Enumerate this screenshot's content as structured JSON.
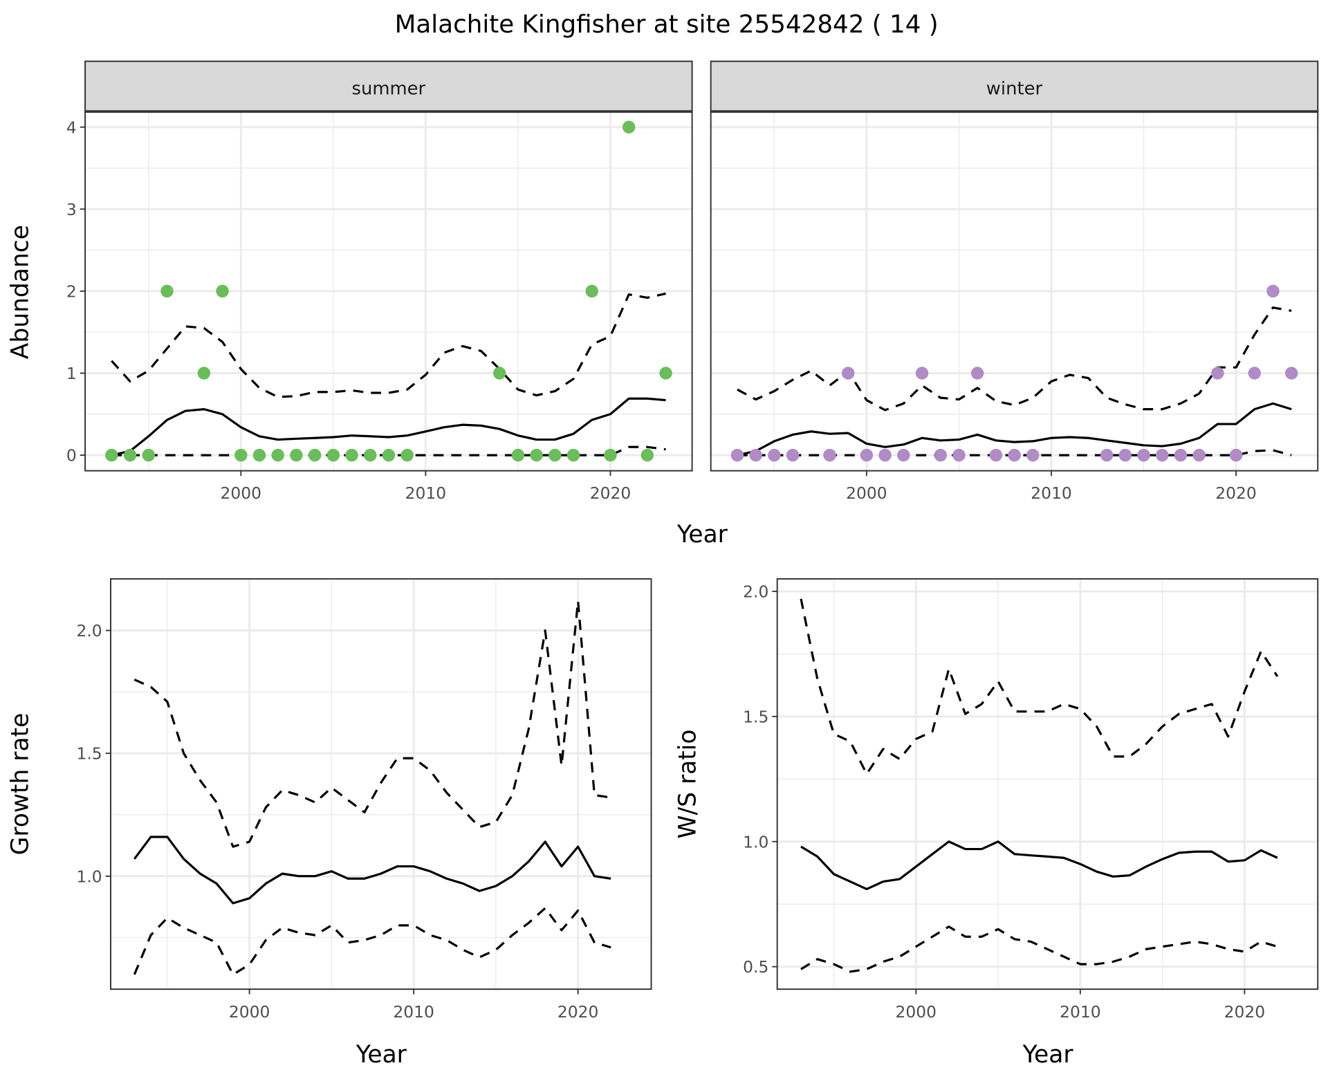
{
  "title": "Malachite Kingfisher at site 25542842 ( 14 )",
  "colors": {
    "summer": "#6ABD5A",
    "winter": "#B08BC6",
    "line": "#000000",
    "strip": "#D9D9D9",
    "grid": "#EBEBEB"
  },
  "shared_axis": {
    "top_xlabel": "Year",
    "top_ylabel": "Abundance"
  },
  "chart_data": [
    {
      "type": "line",
      "title": "summer",
      "xlabel": "Year",
      "ylabel": "Abundance",
      "xticks": [
        2000,
        2010,
        2020
      ],
      "xtick_labels": [
        "2000",
        "2010",
        "2020"
      ],
      "yticks": [
        0,
        1,
        2,
        3,
        4
      ],
      "ytick_labels": [
        "0",
        "1",
        "2",
        "3",
        "4"
      ],
      "ylim": [
        -0.19,
        4.19
      ],
      "grid": true,
      "points": {
        "x": [
          1993,
          1994,
          1995,
          1996,
          1998,
          1999,
          2000,
          2001,
          2002,
          2003,
          2004,
          2005,
          2006,
          2007,
          2008,
          2009,
          2014,
          2015,
          2016,
          2017,
          2018,
          2019,
          2020,
          2021,
          2022,
          2023
        ],
        "y": [
          0,
          0,
          0,
          2,
          1,
          2,
          0,
          0,
          0,
          0,
          0,
          0,
          0,
          0,
          0,
          0,
          1,
          0,
          0,
          0,
          0,
          2,
          0,
          4,
          0,
          1
        ]
      },
      "x": [
        1993,
        1994,
        1995,
        1996,
        1997,
        1998,
        1999,
        2000,
        2001,
        2002,
        2003,
        2004,
        2005,
        2006,
        2007,
        2008,
        2009,
        2010,
        2011,
        2012,
        2013,
        2014,
        2015,
        2016,
        2017,
        2018,
        2019,
        2020,
        2021,
        2022,
        2023
      ],
      "series": [
        {
          "name": "mean",
          "style": "solid",
          "values": [
            0.0,
            0.05,
            0.23,
            0.43,
            0.54,
            0.56,
            0.5,
            0.34,
            0.23,
            0.19,
            0.2,
            0.21,
            0.22,
            0.24,
            0.23,
            0.22,
            0.24,
            0.29,
            0.34,
            0.37,
            0.36,
            0.32,
            0.24,
            0.19,
            0.19,
            0.26,
            0.43,
            0.5,
            0.69,
            0.69,
            0.67
          ]
        },
        {
          "name": "upper",
          "style": "dashed",
          "values": [
            1.15,
            0.9,
            1.03,
            1.3,
            1.57,
            1.55,
            1.38,
            1.05,
            0.82,
            0.71,
            0.72,
            0.77,
            0.77,
            0.79,
            0.76,
            0.76,
            0.8,
            0.98,
            1.25,
            1.33,
            1.27,
            1.05,
            0.8,
            0.73,
            0.78,
            0.93,
            1.35,
            1.45,
            1.96,
            1.92,
            1.97
          ]
        },
        {
          "name": "lower",
          "style": "dashed",
          "values": [
            0,
            0,
            0,
            0,
            0,
            0,
            0,
            0,
            0,
            0,
            0,
            0,
            0,
            0,
            0,
            0,
            0,
            0,
            0,
            0,
            0,
            0,
            0,
            0,
            0,
            0,
            0,
            0,
            0.1,
            0.1,
            0.07
          ]
        }
      ]
    },
    {
      "type": "line",
      "title": "winter",
      "xlabel": "Year",
      "ylabel": "Abundance",
      "xticks": [
        2000,
        2010,
        2020
      ],
      "xtick_labels": [
        "2000",
        "2010",
        "2020"
      ],
      "yticks": [
        0,
        1,
        2,
        3,
        4
      ],
      "ytick_labels": [
        "0",
        "1",
        "2",
        "3",
        "4"
      ],
      "ylim": [
        -0.19,
        4.19
      ],
      "grid": true,
      "points": {
        "x": [
          1993,
          1994,
          1995,
          1996,
          1998,
          1999,
          2000,
          2001,
          2002,
          2003,
          2004,
          2005,
          2006,
          2007,
          2008,
          2009,
          2013,
          2014,
          2015,
          2016,
          2017,
          2018,
          2019,
          2020,
          2021,
          2022,
          2023
        ],
        "y": [
          0,
          0,
          0,
          0,
          0,
          1,
          0,
          0,
          0,
          1,
          0,
          0,
          1,
          0,
          0,
          0,
          0,
          0,
          0,
          0,
          0,
          0,
          1,
          0,
          1,
          2,
          1
        ]
      },
      "x": [
        1993,
        1994,
        1995,
        1996,
        1997,
        1998,
        1999,
        2000,
        2001,
        2002,
        2003,
        2004,
        2005,
        2006,
        2007,
        2008,
        2009,
        2010,
        2011,
        2012,
        2013,
        2014,
        2015,
        2016,
        2017,
        2018,
        2019,
        2020,
        2021,
        2022,
        2023
      ],
      "series": [
        {
          "name": "mean",
          "style": "solid",
          "values": [
            0.0,
            0.05,
            0.17,
            0.25,
            0.29,
            0.26,
            0.27,
            0.14,
            0.1,
            0.13,
            0.21,
            0.18,
            0.19,
            0.25,
            0.18,
            0.16,
            0.17,
            0.21,
            0.22,
            0.21,
            0.18,
            0.15,
            0.12,
            0.11,
            0.14,
            0.21,
            0.38,
            0.38,
            0.56,
            0.63,
            0.56
          ]
        },
        {
          "name": "upper",
          "style": "dashed",
          "values": [
            0.8,
            0.68,
            0.78,
            0.92,
            1.03,
            0.85,
            1.02,
            0.67,
            0.55,
            0.63,
            0.85,
            0.7,
            0.68,
            0.82,
            0.66,
            0.61,
            0.7,
            0.9,
            0.98,
            0.94,
            0.7,
            0.62,
            0.56,
            0.56,
            0.63,
            0.75,
            1.07,
            1.07,
            1.47,
            1.8,
            1.76
          ]
        },
        {
          "name": "lower",
          "style": "dashed",
          "values": [
            0,
            0,
            0,
            0,
            0,
            0,
            0,
            0,
            0,
            0,
            0,
            0,
            0,
            0,
            0,
            0,
            0,
            0,
            0,
            0,
            0,
            0,
            0,
            0,
            0,
            0,
            0,
            0,
            0.05,
            0.06,
            0.0
          ]
        }
      ]
    },
    {
      "type": "line",
      "title": "",
      "xlabel": "Year",
      "ylabel": "Growth rate",
      "xticks": [
        2000,
        2010,
        2020
      ],
      "xtick_labels": [
        "2000",
        "2010",
        "2020"
      ],
      "yticks": [
        1.0,
        1.5,
        2.0
      ],
      "ytick_labels": [
        "1.0",
        "1.5",
        "2.0"
      ],
      "ylim": [
        0.54,
        2.21
      ],
      "grid": true,
      "x": [
        1993,
        1994,
        1995,
        1996,
        1997,
        1998,
        1999,
        2000,
        2001,
        2002,
        2003,
        2004,
        2005,
        2006,
        2007,
        2008,
        2009,
        2010,
        2011,
        2012,
        2013,
        2014,
        2015,
        2016,
        2017,
        2018,
        2019,
        2020,
        2021,
        2022
      ],
      "series": [
        {
          "name": "mean",
          "style": "solid",
          "values": [
            1.07,
            1.16,
            1.16,
            1.07,
            1.01,
            0.97,
            0.89,
            0.91,
            0.97,
            1.01,
            1.0,
            1.0,
            1.02,
            0.99,
            0.99,
            1.01,
            1.04,
            1.04,
            1.02,
            0.99,
            0.97,
            0.94,
            0.96,
            1.0,
            1.06,
            1.14,
            1.04,
            1.12,
            1.0,
            0.99
          ]
        },
        {
          "name": "upper",
          "style": "dashed",
          "values": [
            1.8,
            1.77,
            1.71,
            1.5,
            1.39,
            1.3,
            1.12,
            1.14,
            1.28,
            1.35,
            1.33,
            1.3,
            1.36,
            1.31,
            1.26,
            1.38,
            1.48,
            1.48,
            1.43,
            1.34,
            1.27,
            1.2,
            1.22,
            1.33,
            1.6,
            2.0,
            1.45,
            2.12,
            1.33,
            1.32
          ]
        },
        {
          "name": "lower",
          "style": "dashed",
          "values": [
            0.6,
            0.76,
            0.83,
            0.79,
            0.76,
            0.73,
            0.6,
            0.64,
            0.74,
            0.79,
            0.77,
            0.76,
            0.8,
            0.73,
            0.74,
            0.76,
            0.8,
            0.8,
            0.76,
            0.74,
            0.7,
            0.67,
            0.7,
            0.76,
            0.81,
            0.87,
            0.78,
            0.86,
            0.73,
            0.71
          ]
        }
      ]
    },
    {
      "type": "line",
      "title": "",
      "xlabel": "Year",
      "ylabel": "W/S ratio",
      "xticks": [
        2000,
        2010,
        2020
      ],
      "xtick_labels": [
        "2000",
        "2010",
        "2020"
      ],
      "yticks": [
        0.5,
        1.0,
        1.5,
        2.0
      ],
      "ytick_labels": [
        "0.5",
        "1.0",
        "1.5",
        "2.0"
      ],
      "ylim": [
        0.41,
        2.05
      ],
      "grid": true,
      "x": [
        1993,
        1994,
        1995,
        1996,
        1997,
        1998,
        1999,
        2000,
        2001,
        2002,
        2003,
        2004,
        2005,
        2006,
        2007,
        2008,
        2009,
        2010,
        2011,
        2012,
        2013,
        2014,
        2015,
        2016,
        2017,
        2018,
        2019,
        2020,
        2021,
        2022
      ],
      "series": [
        {
          "name": "mean",
          "style": "solid",
          "values": [
            0.98,
            0.94,
            0.87,
            0.84,
            0.81,
            0.84,
            0.85,
            0.9,
            0.95,
            1.0,
            0.97,
            0.97,
            1.0,
            0.95,
            0.945,
            0.94,
            0.935,
            0.91,
            0.88,
            0.86,
            0.865,
            0.9,
            0.93,
            0.955,
            0.96,
            0.96,
            0.92,
            0.925,
            0.965,
            0.935
          ]
        },
        {
          "name": "upper",
          "style": "dashed",
          "values": [
            1.97,
            1.65,
            1.43,
            1.4,
            1.27,
            1.37,
            1.33,
            1.41,
            1.44,
            1.69,
            1.51,
            1.55,
            1.64,
            1.52,
            1.52,
            1.52,
            1.55,
            1.53,
            1.46,
            1.34,
            1.34,
            1.39,
            1.46,
            1.51,
            1.53,
            1.55,
            1.42,
            1.6,
            1.76,
            1.66
          ]
        },
        {
          "name": "lower",
          "style": "dashed",
          "values": [
            0.49,
            0.53,
            0.51,
            0.48,
            0.49,
            0.52,
            0.54,
            0.58,
            0.62,
            0.66,
            0.62,
            0.62,
            0.65,
            0.61,
            0.6,
            0.57,
            0.54,
            0.51,
            0.51,
            0.52,
            0.54,
            0.57,
            0.58,
            0.59,
            0.6,
            0.59,
            0.57,
            0.56,
            0.6,
            0.58
          ]
        }
      ]
    }
  ]
}
